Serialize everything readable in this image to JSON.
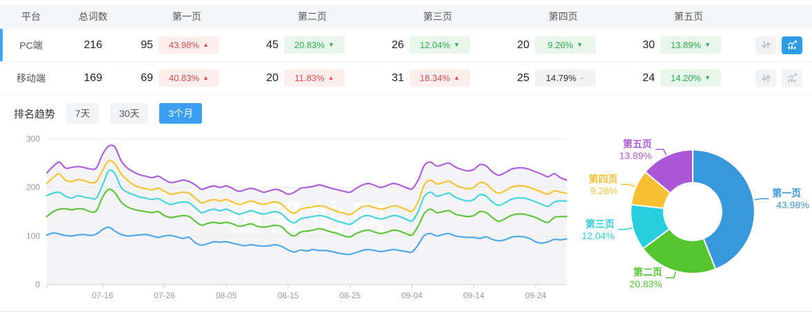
{
  "colors": {
    "accent_blue": "#2f9ce8",
    "up_red": "#e84c4c",
    "down_green": "#28b34b",
    "selected_bar": "#3da6f0"
  },
  "table": {
    "columns": [
      "平台",
      "总词数",
      "第一页",
      "第二页",
      "第三页",
      "第四页",
      "第五页"
    ],
    "rows": [
      {
        "platform": "PC端",
        "total": "216",
        "selected": true,
        "pages": [
          {
            "count": "95",
            "pct": "43.98%",
            "arrow": "▲",
            "tone": "up"
          },
          {
            "count": "45",
            "pct": "20.83%",
            "arrow": "▼",
            "tone": "down"
          },
          {
            "count": "26",
            "pct": "12.04%",
            "arrow": "▼",
            "tone": "down"
          },
          {
            "count": "20",
            "pct": "9.26%",
            "arrow": "▼",
            "tone": "down"
          },
          {
            "count": "30",
            "pct": "13.89%",
            "arrow": "▼",
            "tone": "down"
          }
        ],
        "actions": {
          "sort_active": false,
          "trend_active": true
        }
      },
      {
        "platform": "移动端",
        "total": "169",
        "selected": false,
        "pages": [
          {
            "count": "69",
            "pct": "40.83%",
            "arrow": "▲",
            "tone": "up"
          },
          {
            "count": "20",
            "pct": "11.83%",
            "arrow": "▲",
            "tone": "up"
          },
          {
            "count": "31",
            "pct": "18.34%",
            "arrow": "▲",
            "tone": "up"
          },
          {
            "count": "25",
            "pct": "14.79%",
            "arrow": "−",
            "tone": "flat"
          },
          {
            "count": "24",
            "pct": "14.20%",
            "arrow": "▼",
            "tone": "down"
          }
        ],
        "actions": {
          "sort_active": false,
          "trend_active": false
        }
      }
    ]
  },
  "trend": {
    "title": "排名趋势",
    "ranges": [
      {
        "label": "7天",
        "active": false
      },
      {
        "label": "30天",
        "active": false
      },
      {
        "label": "3个月",
        "active": true
      }
    ]
  },
  "watermark": "爱站网",
  "chart_data": [
    {
      "type": "line",
      "title": "排名趋势 3个月",
      "stacked_look": true,
      "n_points": 85,
      "ylim": [
        0,
        300
      ],
      "y_ticks": [
        0,
        100,
        200,
        300
      ],
      "grid": true,
      "area_fill": "#f4f4f6",
      "x_tick_labels": [
        "07-16",
        "07-26",
        "08-05",
        "08-15",
        "08-25",
        "09-04",
        "09-14",
        "09-24"
      ],
      "x_tick_indices": [
        9,
        19,
        29,
        39,
        49,
        59,
        69,
        79
      ],
      "series": [
        {
          "name": "第一页",
          "color": "#4da9e8",
          "values": [
            102,
            106,
            104,
            101,
            100,
            102,
            103,
            101,
            104,
            113,
            118,
            110,
            103,
            100,
            101,
            102,
            103,
            100,
            97,
            100,
            101,
            98,
            95,
            97,
            86,
            81,
            84,
            88,
            87,
            88,
            85,
            82,
            80,
            82,
            80,
            79,
            80,
            82,
            78,
            71,
            67,
            71,
            69,
            72,
            70,
            70,
            68,
            65,
            63,
            62,
            66,
            70,
            72,
            70,
            68,
            70,
            72,
            70,
            68,
            67,
            82,
            101,
            105,
            100,
            103,
            105,
            100,
            98,
            97,
            97,
            95,
            98,
            93,
            90,
            92,
            97,
            99,
            98,
            95,
            88,
            85,
            88,
            93,
            92,
            94
          ]
        },
        {
          "name": "第二页",
          "color": "#5ec53c",
          "values": [
            140,
            150,
            155,
            156,
            154,
            156,
            155,
            150,
            152,
            180,
            196,
            189,
            170,
            160,
            155,
            152,
            150,
            148,
            150,
            142,
            138,
            140,
            142,
            140,
            130,
            122,
            126,
            128,
            126,
            128,
            125,
            120,
            122,
            125,
            120,
            118,
            120,
            122,
            118,
            106,
            100,
            108,
            110,
            112,
            115,
            112,
            108,
            105,
            100,
            98,
            105,
            110,
            112,
            108,
            105,
            108,
            112,
            110,
            105,
            102,
            120,
            146,
            155,
            148,
            150,
            152,
            145,
            142,
            140,
            142,
            150,
            148,
            138,
            130,
            135,
            142,
            145,
            145,
            142,
            138,
            132,
            128,
            138,
            140,
            140
          ]
        },
        {
          "name": "第三页",
          "color": "#45d4de",
          "values": [
            183,
            188,
            190,
            182,
            178,
            183,
            180,
            178,
            178,
            205,
            234,
            228,
            200,
            190,
            185,
            180,
            178,
            175,
            177,
            170,
            165,
            168,
            170,
            168,
            158,
            148,
            152,
            155,
            152,
            155,
            150,
            145,
            148,
            152,
            148,
            145,
            148,
            150,
            145,
            133,
            127,
            135,
            138,
            140,
            142,
            140,
            135,
            130,
            127,
            124,
            132,
            140,
            142,
            138,
            135,
            138,
            142,
            140,
            135,
            131,
            150,
            181,
            190,
            182,
            185,
            188,
            180,
            175,
            172,
            175,
            185,
            182,
            170,
            163,
            168,
            175,
            178,
            178,
            175,
            170,
            165,
            161,
            170,
            172,
            172
          ]
        },
        {
          "name": "第四页",
          "color": "#f6c332",
          "values": [
            208,
            220,
            228,
            215,
            212,
            216,
            214,
            210,
            212,
            235,
            255,
            248,
            228,
            215,
            205,
            200,
            197,
            195,
            198,
            192,
            186,
            188,
            190,
            188,
            178,
            168,
            172,
            175,
            172,
            175,
            170,
            165,
            168,
            172,
            168,
            165,
            168,
            170,
            165,
            153,
            147,
            155,
            158,
            160,
            162,
            160,
            155,
            150,
            147,
            144,
            152,
            160,
            162,
            158,
            155,
            158,
            162,
            160,
            155,
            151,
            170,
            205,
            215,
            207,
            210,
            213,
            205,
            200,
            197,
            200,
            210,
            207,
            195,
            188,
            193,
            200,
            203,
            203,
            200,
            195,
            190,
            186,
            193,
            190,
            188
          ]
        },
        {
          "name": "第五页",
          "color": "#ae5fd9",
          "values": [
            230,
            243,
            252,
            240,
            241,
            243,
            241,
            238,
            240,
            268,
            285,
            283,
            255,
            240,
            232,
            226,
            223,
            220,
            223,
            216,
            210,
            212,
            215,
            212,
            205,
            196,
            200,
            203,
            200,
            203,
            198,
            192,
            195,
            198,
            195,
            190,
            193,
            196,
            192,
            186,
            190,
            198,
            200,
            202,
            205,
            202,
            198,
            195,
            192,
            190,
            198,
            205,
            208,
            204,
            200,
            204,
            208,
            205,
            200,
            197,
            215,
            245,
            252,
            244,
            247,
            250,
            242,
            237,
            234,
            237,
            247,
            244,
            232,
            225,
            230,
            237,
            240,
            240,
            237,
            232,
            227,
            222,
            228,
            220,
            215
          ]
        }
      ]
    },
    {
      "type": "pie",
      "donut": true,
      "unit": "%",
      "labels": [
        "第一页",
        "第二页",
        "第三页",
        "第四页",
        "第五页"
      ],
      "values": [
        43.98,
        20.83,
        12.04,
        9.26,
        13.89
      ],
      "value_labels": [
        "43.98%",
        "20.83%",
        "12.04%",
        "9.26%",
        "13.89%"
      ],
      "colors": [
        "#3898db",
        "#54c52f",
        "#29cede",
        "#f8bf33",
        "#ab57d8"
      ]
    }
  ]
}
